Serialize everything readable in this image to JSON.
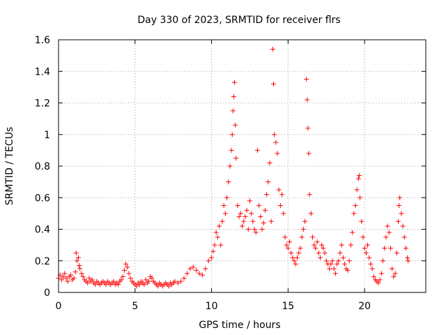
{
  "chart_data": {
    "type": "scatter",
    "title": "Day 330 of 2023, SRMTID for receiver flrs",
    "xlabel": "GPS time / hours",
    "ylabel": "SRMTID / TECUs",
    "xlim": [
      0,
      24
    ],
    "ylim": [
      0,
      1.6
    ],
    "x_ticks": [
      0,
      5,
      10,
      15,
      20
    ],
    "x_tick_labels": [
      "0",
      "5",
      "10",
      "15",
      "20"
    ],
    "y_ticks": [
      0,
      0.2,
      0.4,
      0.6,
      0.8,
      1,
      1.2,
      1.4,
      1.6
    ],
    "y_tick_labels": [
      "0",
      "0.2",
      "0.4",
      "0.6",
      "0.8",
      "1",
      "1.2",
      "1.4",
      "1.6"
    ],
    "grid": true,
    "marker": "+",
    "color": "#ff0000",
    "series": [
      {
        "name": "SRMTID",
        "points": [
          [
            0.0,
            0.09
          ],
          [
            0.1,
            0.11
          ],
          [
            0.2,
            0.08
          ],
          [
            0.3,
            0.1
          ],
          [
            0.4,
            0.12
          ],
          [
            0.5,
            0.09
          ],
          [
            0.6,
            0.07
          ],
          [
            0.7,
            0.1
          ],
          [
            0.8,
            0.11
          ],
          [
            0.9,
            0.08
          ],
          [
            1.0,
            0.09
          ],
          [
            1.1,
            0.13
          ],
          [
            1.15,
            0.25
          ],
          [
            1.2,
            0.2
          ],
          [
            1.3,
            0.22
          ],
          [
            1.35,
            0.17
          ],
          [
            1.4,
            0.15
          ],
          [
            1.5,
            0.12
          ],
          [
            1.6,
            0.1
          ],
          [
            1.7,
            0.08
          ],
          [
            1.8,
            0.07
          ],
          [
            1.9,
            0.06
          ],
          [
            2.0,
            0.09
          ],
          [
            2.1,
            0.07
          ],
          [
            2.2,
            0.08
          ],
          [
            2.3,
            0.06
          ],
          [
            2.4,
            0.05
          ],
          [
            2.5,
            0.07
          ],
          [
            2.6,
            0.06
          ],
          [
            2.7,
            0.05
          ],
          [
            2.8,
            0.06
          ],
          [
            2.9,
            0.07
          ],
          [
            3.0,
            0.06
          ],
          [
            3.1,
            0.05
          ],
          [
            3.2,
            0.07
          ],
          [
            3.3,
            0.06
          ],
          [
            3.4,
            0.05
          ],
          [
            3.5,
            0.06
          ],
          [
            3.6,
            0.07
          ],
          [
            3.7,
            0.05
          ],
          [
            3.8,
            0.06
          ],
          [
            3.9,
            0.05
          ],
          [
            4.0,
            0.07
          ],
          [
            4.1,
            0.08
          ],
          [
            4.2,
            0.1
          ],
          [
            4.3,
            0.14
          ],
          [
            4.4,
            0.18
          ],
          [
            4.5,
            0.16
          ],
          [
            4.6,
            0.12
          ],
          [
            4.7,
            0.09
          ],
          [
            4.8,
            0.07
          ],
          [
            4.9,
            0.06
          ],
          [
            5.0,
            0.05
          ],
          [
            5.1,
            0.04
          ],
          [
            5.2,
            0.06
          ],
          [
            5.3,
            0.05
          ],
          [
            5.4,
            0.07
          ],
          [
            5.5,
            0.06
          ],
          [
            5.6,
            0.05
          ],
          [
            5.7,
            0.08
          ],
          [
            5.8,
            0.06
          ],
          [
            5.9,
            0.07
          ],
          [
            6.0,
            0.1
          ],
          [
            6.1,
            0.09
          ],
          [
            6.2,
            0.07
          ],
          [
            6.3,
            0.06
          ],
          [
            6.4,
            0.05
          ],
          [
            6.5,
            0.04
          ],
          [
            6.6,
            0.06
          ],
          [
            6.7,
            0.05
          ],
          [
            6.8,
            0.04
          ],
          [
            6.9,
            0.05
          ],
          [
            7.0,
            0.06
          ],
          [
            7.1,
            0.05
          ],
          [
            7.2,
            0.04
          ],
          [
            7.3,
            0.06
          ],
          [
            7.4,
            0.05
          ],
          [
            7.5,
            0.06
          ],
          [
            7.6,
            0.07
          ],
          [
            7.8,
            0.06
          ],
          [
            8.0,
            0.07
          ],
          [
            8.2,
            0.09
          ],
          [
            8.4,
            0.12
          ],
          [
            8.6,
            0.15
          ],
          [
            8.8,
            0.16
          ],
          [
            9.0,
            0.14
          ],
          [
            9.2,
            0.12
          ],
          [
            9.4,
            0.11
          ],
          [
            9.6,
            0.15
          ],
          [
            9.8,
            0.2
          ],
          [
            10.0,
            0.22
          ],
          [
            10.1,
            0.26
          ],
          [
            10.2,
            0.3
          ],
          [
            10.3,
            0.38
          ],
          [
            10.4,
            0.35
          ],
          [
            10.5,
            0.42
          ],
          [
            10.6,
            0.3
          ],
          [
            10.7,
            0.45
          ],
          [
            10.8,
            0.55
          ],
          [
            10.9,
            0.5
          ],
          [
            11.0,
            0.6
          ],
          [
            11.1,
            0.7
          ],
          [
            11.2,
            0.8
          ],
          [
            11.3,
            0.9
          ],
          [
            11.35,
            1.0
          ],
          [
            11.4,
            1.15
          ],
          [
            11.45,
            1.24
          ],
          [
            11.5,
            1.33
          ],
          [
            11.55,
            1.06
          ],
          [
            11.6,
            0.85
          ],
          [
            11.7,
            0.55
          ],
          [
            11.8,
            0.48
          ],
          [
            11.9,
            0.5
          ],
          [
            12.0,
            0.42
          ],
          [
            12.1,
            0.45
          ],
          [
            12.2,
            0.48
          ],
          [
            12.3,
            0.52
          ],
          [
            12.4,
            0.4
          ],
          [
            12.5,
            0.58
          ],
          [
            12.6,
            0.5
          ],
          [
            12.7,
            0.45
          ],
          [
            12.8,
            0.4
          ],
          [
            12.9,
            0.38
          ],
          [
            13.0,
            0.9
          ],
          [
            13.1,
            0.55
          ],
          [
            13.2,
            0.48
          ],
          [
            13.3,
            0.4
          ],
          [
            13.4,
            0.44
          ],
          [
            13.5,
            0.52
          ],
          [
            13.6,
            0.62
          ],
          [
            13.7,
            0.7
          ],
          [
            13.8,
            0.82
          ],
          [
            13.9,
            0.45
          ],
          [
            14.0,
            1.54
          ],
          [
            14.05,
            1.32
          ],
          [
            14.1,
            1.0
          ],
          [
            14.2,
            0.95
          ],
          [
            14.3,
            0.88
          ],
          [
            14.4,
            0.65
          ],
          [
            14.5,
            0.55
          ],
          [
            14.6,
            0.62
          ],
          [
            14.7,
            0.5
          ],
          [
            14.8,
            0.35
          ],
          [
            14.9,
            0.3
          ],
          [
            15.0,
            0.28
          ],
          [
            15.1,
            0.32
          ],
          [
            15.2,
            0.25
          ],
          [
            15.3,
            0.22
          ],
          [
            15.4,
            0.2
          ],
          [
            15.5,
            0.18
          ],
          [
            15.6,
            0.22
          ],
          [
            15.7,
            0.25
          ],
          [
            15.8,
            0.28
          ],
          [
            15.9,
            0.35
          ],
          [
            16.0,
            0.4
          ],
          [
            16.1,
            0.45
          ],
          [
            16.2,
            1.35
          ],
          [
            16.25,
            1.22
          ],
          [
            16.3,
            1.04
          ],
          [
            16.35,
            0.88
          ],
          [
            16.4,
            0.62
          ],
          [
            16.5,
            0.5
          ],
          [
            16.6,
            0.35
          ],
          [
            16.7,
            0.3
          ],
          [
            16.8,
            0.28
          ],
          [
            16.9,
            0.32
          ],
          [
            17.0,
            0.25
          ],
          [
            17.1,
            0.22
          ],
          [
            17.2,
            0.3
          ],
          [
            17.3,
            0.28
          ],
          [
            17.4,
            0.25
          ],
          [
            17.5,
            0.2
          ],
          [
            17.6,
            0.18
          ],
          [
            17.7,
            0.15
          ],
          [
            17.8,
            0.18
          ],
          [
            17.9,
            0.2
          ],
          [
            18.0,
            0.15
          ],
          [
            18.1,
            0.12
          ],
          [
            18.2,
            0.18
          ],
          [
            18.3,
            0.2
          ],
          [
            18.4,
            0.25
          ],
          [
            18.5,
            0.3
          ],
          [
            18.6,
            0.22
          ],
          [
            18.7,
            0.18
          ],
          [
            18.8,
            0.15
          ],
          [
            18.9,
            0.14
          ],
          [
            19.0,
            0.2
          ],
          [
            19.1,
            0.3
          ],
          [
            19.2,
            0.38
          ],
          [
            19.3,
            0.5
          ],
          [
            19.4,
            0.55
          ],
          [
            19.5,
            0.65
          ],
          [
            19.6,
            0.72
          ],
          [
            19.65,
            0.74
          ],
          [
            19.7,
            0.6
          ],
          [
            19.8,
            0.45
          ],
          [
            19.9,
            0.35
          ],
          [
            20.0,
            0.28
          ],
          [
            20.1,
            0.25
          ],
          [
            20.2,
            0.3
          ],
          [
            20.3,
            0.22
          ],
          [
            20.4,
            0.18
          ],
          [
            20.5,
            0.15
          ],
          [
            20.6,
            0.1
          ],
          [
            20.7,
            0.08
          ],
          [
            20.8,
            0.07
          ],
          [
            20.9,
            0.06
          ],
          [
            21.0,
            0.08
          ],
          [
            21.1,
            0.12
          ],
          [
            21.2,
            0.2
          ],
          [
            21.3,
            0.28
          ],
          [
            21.4,
            0.35
          ],
          [
            21.5,
            0.42
          ],
          [
            21.6,
            0.38
          ],
          [
            21.7,
            0.28
          ],
          [
            21.8,
            0.15
          ],
          [
            21.9,
            0.1
          ],
          [
            22.0,
            0.12
          ],
          [
            22.1,
            0.25
          ],
          [
            22.2,
            0.45
          ],
          [
            22.25,
            0.55
          ],
          [
            22.3,
            0.6
          ],
          [
            22.4,
            0.5
          ],
          [
            22.5,
            0.42
          ],
          [
            22.6,
            0.35
          ],
          [
            22.7,
            0.28
          ],
          [
            22.8,
            0.22
          ],
          [
            22.85,
            0.2
          ]
        ]
      }
    ]
  }
}
